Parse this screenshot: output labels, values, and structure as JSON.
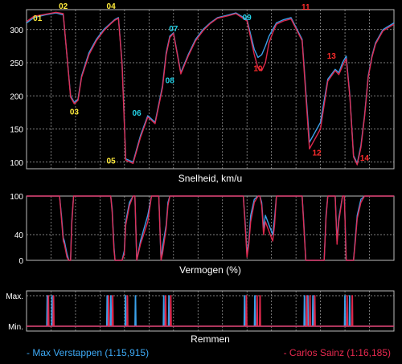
{
  "chart_data": [
    {
      "type": "line",
      "xlabel": "Snelheid, km/u",
      "ylim": [
        90,
        330
      ],
      "yticks": [
        100,
        150,
        200,
        250,
        300
      ],
      "grid": true,
      "series": [
        {
          "name": "Max Verstappen (1:15,915)",
          "color": "#3da9f5",
          "x": [
            0,
            2,
            5,
            8,
            10,
            12,
            13,
            14,
            15,
            17,
            19,
            21,
            23,
            24,
            25,
            26,
            27,
            29,
            31,
            33,
            35,
            37,
            38,
            39,
            40,
            42,
            44,
            46,
            48,
            50,
            52,
            55,
            57,
            60,
            62,
            63,
            64,
            65,
            66,
            67,
            68,
            70,
            72,
            75,
            77,
            80,
            82,
            84,
            85,
            86,
            87,
            88,
            89,
            90,
            91,
            92,
            93,
            94,
            95,
            97,
            100
          ],
          "y": [
            310,
            318,
            322,
            325,
            322,
            200,
            190,
            195,
            230,
            265,
            285,
            300,
            310,
            315,
            318,
            250,
            105,
            100,
            140,
            170,
            160,
            215,
            265,
            290,
            295,
            235,
            262,
            285,
            300,
            310,
            318,
            322,
            325,
            315,
            270,
            258,
            262,
            275,
            290,
            300,
            310,
            315,
            318,
            285,
            130,
            160,
            225,
            240,
            235,
            250,
            260,
            200,
            110,
            98,
            125,
            170,
            230,
            260,
            280,
            300,
            310
          ]
        },
        {
          "name": "Carlos Sainz (1:16,185)",
          "color": "#e8294f",
          "x": [
            0,
            2,
            5,
            8,
            10,
            12,
            13,
            14,
            15,
            17,
            19,
            21,
            23,
            24,
            25,
            26,
            27,
            29,
            31,
            33,
            35,
            37,
            38,
            39,
            40,
            42,
            44,
            46,
            48,
            50,
            52,
            55,
            57,
            60,
            62,
            63,
            64,
            65,
            66,
            67,
            68,
            70,
            72,
            75,
            77,
            80,
            82,
            84,
            85,
            86,
            87,
            88,
            89,
            90,
            91,
            92,
            93,
            94,
            95,
            97,
            100
          ],
          "y": [
            312,
            320,
            323,
            326,
            324,
            198,
            188,
            193,
            228,
            262,
            283,
            298,
            309,
            314,
            317,
            248,
            103,
            98,
            137,
            168,
            158,
            212,
            262,
            288,
            294,
            233,
            260,
            283,
            298,
            309,
            317,
            321,
            324,
            313,
            262,
            242,
            238,
            250,
            280,
            295,
            308,
            313,
            316,
            283,
            120,
            150,
            222,
            238,
            232,
            245,
            256,
            198,
            108,
            96,
            122,
            168,
            228,
            258,
            278,
            298,
            308
          ]
        }
      ],
      "annotations": [
        {
          "label": "01",
          "x": 3,
          "y": 313,
          "color": "#ffeb3b"
        },
        {
          "label": "02",
          "x": 10,
          "y": 331,
          "color": "#ffeb3b"
        },
        {
          "label": "03",
          "x": 13,
          "y": 172,
          "color": "#ffeb3b"
        },
        {
          "label": "04",
          "x": 23,
          "y": 331,
          "color": "#ffeb3b"
        },
        {
          "label": "05",
          "x": 23,
          "y": 98,
          "color": "#ffeb3b"
        },
        {
          "label": "06",
          "x": 30,
          "y": 170,
          "color": "#23d3e8"
        },
        {
          "label": "07",
          "x": 40,
          "y": 297,
          "color": "#23d3e8"
        },
        {
          "label": "08",
          "x": 39,
          "y": 219,
          "color": "#23d3e8"
        },
        {
          "label": "09",
          "x": 60,
          "y": 314,
          "color": "#23d3e8"
        },
        {
          "label": "10",
          "x": 63,
          "y": 237,
          "color": "#ff2b2b"
        },
        {
          "label": "11",
          "x": 76,
          "y": 330,
          "color": "#ff2b2b"
        },
        {
          "label": "12",
          "x": 79,
          "y": 110,
          "color": "#ff2b2b"
        },
        {
          "label": "13",
          "x": 83,
          "y": 256,
          "color": "#ff2b2b"
        },
        {
          "label": "14",
          "x": 92,
          "y": 102,
          "color": "#ff2b2b"
        }
      ]
    },
    {
      "type": "line",
      "xlabel": "Vermogen (%)",
      "ylim": [
        0,
        100
      ],
      "yticks": [
        0,
        40,
        100
      ],
      "grid": true,
      "series": [
        {
          "name": "Max Verstappen (1:15,915)",
          "color": "#3da9f5",
          "x": [
            0,
            9,
            9.5,
            10,
            10.3,
            11,
            11.5,
            12,
            12.3,
            12.8,
            22.5,
            22.9,
            23.3,
            23.8,
            24.1,
            25,
            26,
            26.6,
            27,
            28,
            29,
            29.5,
            30,
            31,
            33,
            34,
            35,
            36,
            36.6,
            37,
            38,
            38.5,
            39,
            40,
            59,
            59.5,
            60,
            60.5,
            61,
            62,
            63,
            63.5,
            64,
            64.5,
            65,
            66,
            67,
            67.5,
            68,
            69,
            75,
            75.5,
            76,
            76.3,
            77,
            79,
            80,
            81,
            81.5,
            82,
            83,
            84,
            84.5,
            85,
            86,
            86.5,
            87,
            88,
            89,
            89.5,
            90,
            91,
            92,
            93,
            100
          ],
          "y": [
            100,
            100,
            70,
            35,
            30,
            10,
            0,
            0,
            60,
            100,
            100,
            100,
            80,
            20,
            0,
            0,
            0,
            15,
            60,
            90,
            100,
            100,
            0,
            30,
            70,
            100,
            100,
            100,
            0,
            20,
            55,
            90,
            100,
            100,
            100,
            60,
            10,
            30,
            70,
            95,
            100,
            100,
            90,
            50,
            70,
            55,
            40,
            65,
            100,
            100,
            100,
            55,
            0,
            0,
            0,
            0,
            0,
            0,
            70,
            100,
            100,
            100,
            30,
            65,
            100,
            100,
            0,
            0,
            0,
            35,
            70,
            95,
            100,
            100,
            100
          ]
        },
        {
          "name": "Carlos Sainz (1:16,185)",
          "color": "#e8294f",
          "x": [
            0,
            9,
            9.5,
            10,
            10.3,
            11,
            11.5,
            12,
            12.3,
            12.8,
            22.5,
            22.9,
            23.3,
            23.8,
            24.1,
            25,
            26,
            26.6,
            27,
            28,
            29,
            29.5,
            30,
            31,
            33,
            34,
            35,
            36,
            36.6,
            37,
            38,
            38.5,
            39,
            40,
            59,
            59.5,
            60,
            60.5,
            61,
            62,
            63,
            63.5,
            64,
            64.5,
            65,
            66,
            67,
            67.5,
            68,
            69,
            75,
            75.5,
            76,
            76.3,
            77,
            79,
            80,
            81,
            81.5,
            82,
            83,
            84,
            84.5,
            85,
            86,
            86.5,
            87,
            88,
            89,
            89.5,
            90,
            91,
            92,
            93,
            100
          ],
          "y": [
            100,
            100,
            65,
            30,
            25,
            5,
            0,
            0,
            55,
            100,
            100,
            100,
            75,
            15,
            0,
            0,
            0,
            10,
            55,
            85,
            100,
            100,
            0,
            25,
            60,
            100,
            100,
            100,
            0,
            10,
            50,
            85,
            100,
            100,
            100,
            55,
            5,
            25,
            60,
            90,
            100,
            100,
            85,
            40,
            60,
            45,
            30,
            55,
            100,
            100,
            100,
            50,
            0,
            0,
            0,
            0,
            0,
            0,
            65,
            100,
            100,
            100,
            25,
            60,
            100,
            100,
            0,
            0,
            0,
            30,
            65,
            90,
            100,
            100,
            100
          ]
        }
      ]
    },
    {
      "type": "line",
      "xlabel": "Remmen",
      "yticks": [
        "Max.",
        "Min."
      ],
      "grid": true,
      "series": [
        {
          "name": "Max Verstappen (1:15,915)",
          "color": "#3da9f5",
          "x": [
            0,
            5.5,
            5.6,
            5.7,
            5.8,
            6.8,
            6.9,
            7.0,
            7.1,
            21.8,
            21.9,
            22.0,
            22.1,
            22.8,
            22.9,
            23.0,
            23.1,
            26.8,
            26.9,
            27.0,
            27.1,
            29.5,
            29.6,
            29.7,
            29.8,
            37.2,
            37.3,
            37.4,
            37.5,
            38.6,
            38.7,
            38.8,
            38.9,
            59.2,
            59.3,
            59.4,
            59.5,
            62.0,
            62.1,
            62.2,
            62.3,
            75.5,
            75.6,
            75.7,
            75.8,
            76.4,
            76.5,
            76.6,
            76.7,
            77.8,
            77.9,
            78.0,
            78.1,
            86.5,
            86.6,
            86.7,
            86.8,
            87.8,
            87.9,
            88.0,
            88.1,
            100
          ],
          "y": [
            0,
            0,
            1,
            1,
            0,
            0,
            1,
            1,
            0,
            0,
            1,
            1,
            0,
            0,
            1,
            1,
            0,
            0,
            1,
            1,
            0,
            0,
            1,
            1,
            0,
            0,
            1,
            1,
            0,
            0,
            1,
            1,
            0,
            0,
            1,
            1,
            0,
            0,
            1,
            1,
            0,
            0,
            1,
            1,
            0,
            0,
            1,
            1,
            0,
            0,
            1,
            1,
            0,
            0,
            1,
            1,
            0,
            0,
            1,
            1,
            0,
            0
          ]
        },
        {
          "name": "Carlos Sainz (1:16,185)",
          "color": "#e8294f",
          "x": [
            0,
            5.8,
            5.9,
            6.0,
            6.1,
            7.2,
            7.3,
            7.4,
            7.5,
            22.2,
            22.3,
            22.4,
            22.5,
            23.3,
            23.4,
            23.5,
            23.6,
            27.3,
            27.4,
            27.5,
            27.6,
            37.7,
            37.8,
            37.9,
            38.0,
            39.1,
            39.2,
            39.3,
            39.4,
            59.7,
            59.8,
            59.9,
            60.0,
            62.6,
            62.7,
            62.8,
            62.9,
            63.4,
            63.5,
            63.6,
            63.7,
            76.1,
            76.2,
            76.3,
            76.4,
            77.0,
            77.1,
            77.2,
            77.3,
            78.3,
            78.4,
            78.5,
            78.6,
            87.1,
            87.2,
            87.3,
            87.4,
            88.5,
            88.6,
            88.7,
            88.8,
            100
          ],
          "y": [
            0,
            0,
            1,
            1,
            0,
            0,
            1,
            1,
            0,
            0,
            1,
            1,
            0,
            0,
            1,
            1,
            0,
            0,
            1,
            1,
            0,
            0,
            1,
            1,
            0,
            0,
            1,
            1,
            0,
            0,
            1,
            1,
            0,
            0,
            1,
            1,
            0,
            0,
            1,
            1,
            0,
            0,
            1,
            1,
            0,
            0,
            1,
            1,
            0,
            0,
            1,
            1,
            0,
            0,
            1,
            1,
            0,
            0,
            1,
            1,
            0,
            0
          ]
        }
      ]
    }
  ],
  "legend": {
    "blue_label": "- Max Verstappen (1:15,915)",
    "red_label": "- Carlos Sainz (1:16,185)",
    "blue_color": "#3da9f5",
    "red_color": "#e8294f"
  }
}
